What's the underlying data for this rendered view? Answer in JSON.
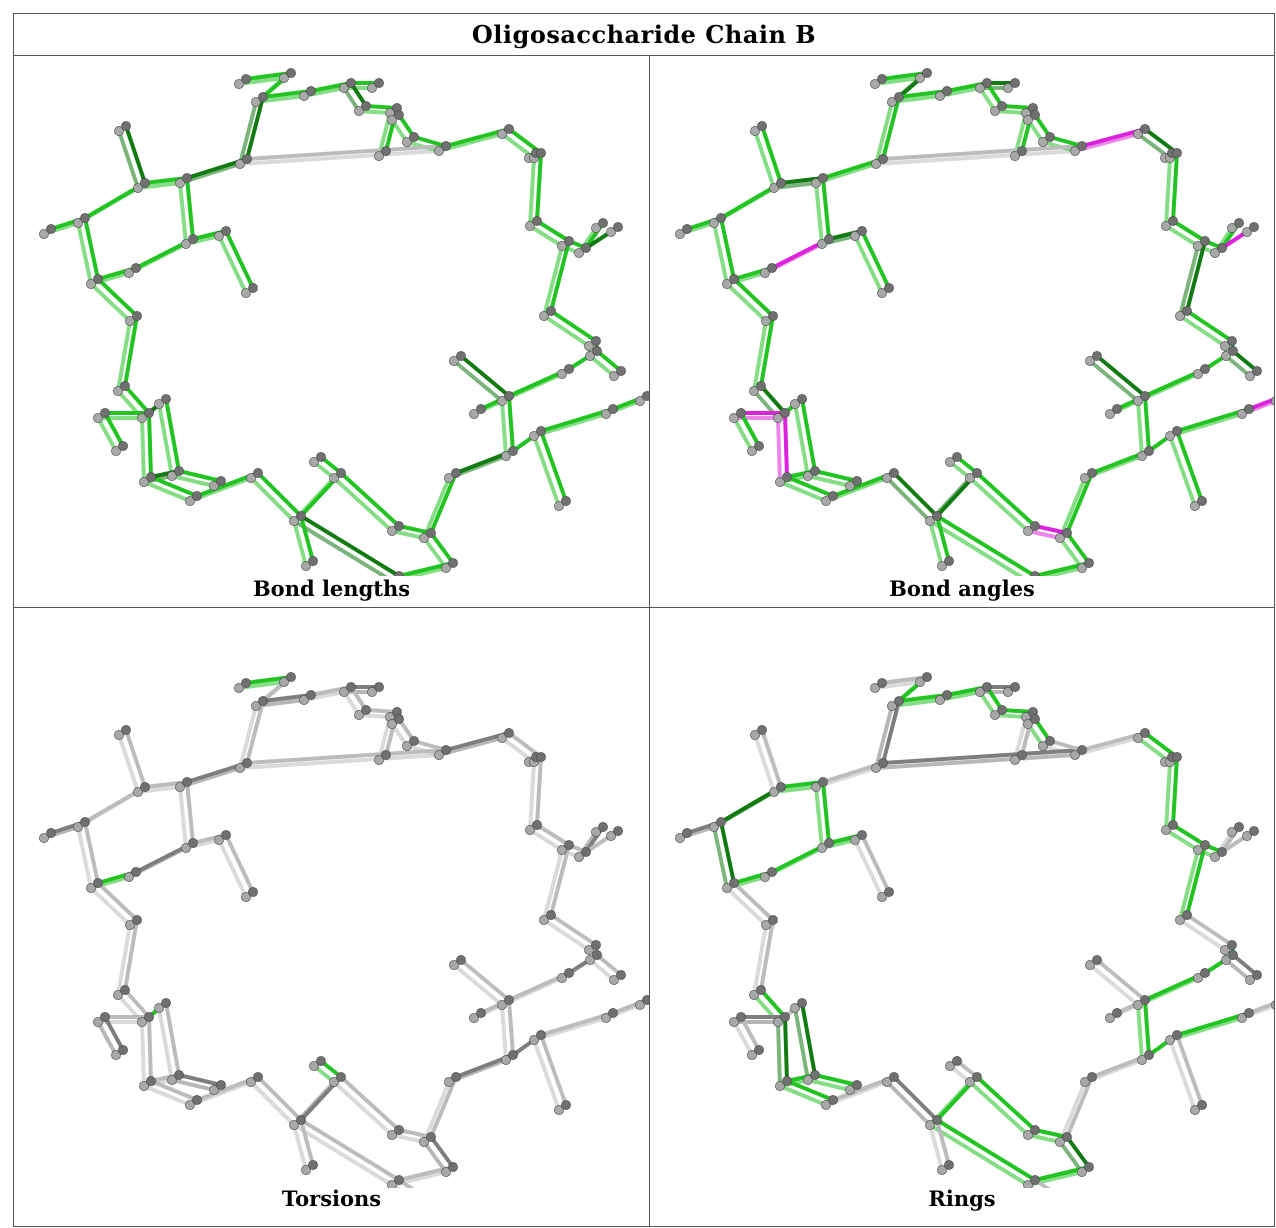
{
  "title": "Oligosaccharide Chain B",
  "panels": [
    {
      "caption": "Bond lengths",
      "mode": "lengths"
    },
    {
      "caption": "Bond angles",
      "mode": "angles"
    },
    {
      "caption": "Torsions",
      "mode": "torsions"
    },
    {
      "caption": "Rings",
      "mode": "rings"
    }
  ],
  "colors": {
    "green": "#22c422",
    "dark_green": "#117a11",
    "magenta": "#dd22dd",
    "grey_bond": "#bcbcbc",
    "dark_grey_bond": "#7e7e7e",
    "atom": "#707070",
    "atom_light": "#a8a8a8"
  }
}
